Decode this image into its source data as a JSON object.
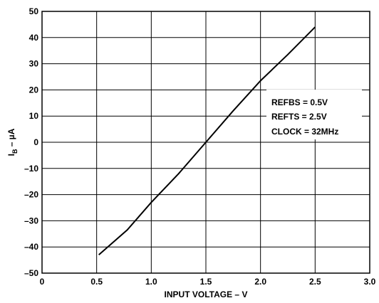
{
  "chart_data": {
    "type": "line",
    "xlabel": "INPUT VOLTAGE – V",
    "ylabel_main": "I",
    "ylabel_sub": "B",
    "ylabel_rest": " – µA",
    "xlim": [
      0,
      3.0
    ],
    "ylim": [
      -50,
      50
    ],
    "grid": true,
    "x_ticks": [
      0,
      0.5,
      1.0,
      1.5,
      2.0,
      2.5,
      3.0
    ],
    "x_tick_labels": [
      "0",
      "0.5",
      "1.0",
      "1.5",
      "2.0",
      "2.5",
      "3.0"
    ],
    "y_ticks": [
      50,
      40,
      30,
      20,
      10,
      0,
      -10,
      -20,
      -30,
      -40,
      -50
    ],
    "y_tick_labels": [
      "50",
      "40",
      "30",
      "20",
      "10",
      "0",
      "–10",
      "–20",
      "–30",
      "–40",
      "–50"
    ],
    "series": [
      {
        "x": [
          0.52,
          0.78,
          1.0,
          1.25,
          1.5,
          1.75,
          2.0,
          2.25,
          2.5
        ],
        "y": [
          -43,
          -33.5,
          -23,
          -12,
          0,
          12,
          23.5,
          33.5,
          44
        ]
      }
    ],
    "annotations": [
      "REFBS = 0.5V",
      "REFTS = 2.5V",
      "CLOCK = 32MHz"
    ]
  }
}
